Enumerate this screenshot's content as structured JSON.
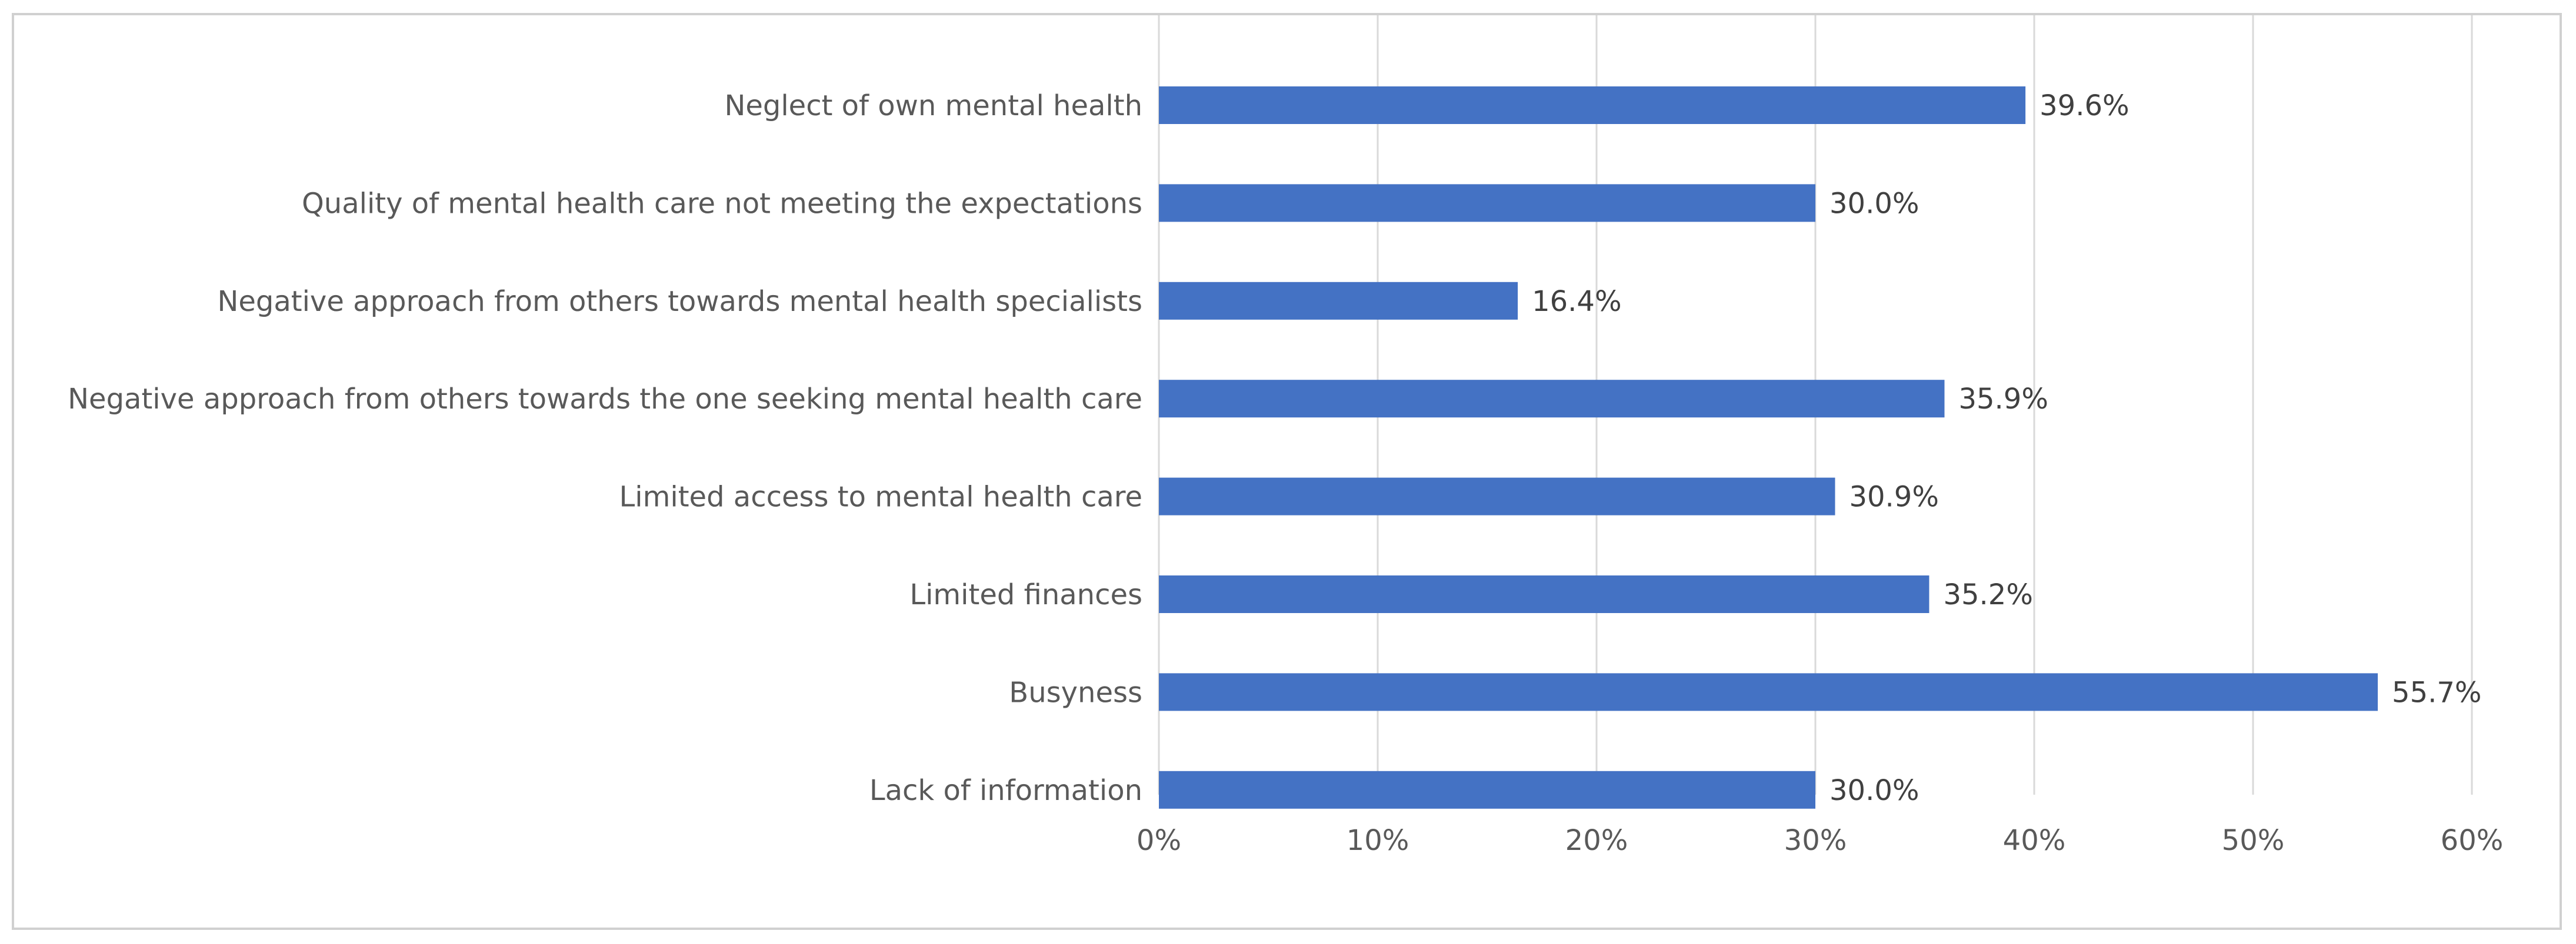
{
  "chart_data": {
    "type": "bar",
    "orientation": "horizontal",
    "title": "",
    "xlabel": "",
    "ylabel": "",
    "categories": [
      "Neglect of own mental health",
      "Quality of mental health care not meeting the expectations",
      "Negative approach from others towards mental health specialists",
      "Negative approach from others towards the one seeking mental health care",
      "Limited access to mental health care",
      "Limited finances",
      "Busyness",
      "Lack of information"
    ],
    "values": [
      39.6,
      30.0,
      16.4,
      35.9,
      30.9,
      35.2,
      55.7,
      30.0
    ],
    "value_labels": [
      "39.6%",
      "30.0%",
      "16.4%",
      "35.9%",
      "30.9%",
      "35.2%",
      "55.7%",
      "30.0%"
    ],
    "xlim": [
      0,
      60
    ],
    "ticks": [
      0,
      10,
      20,
      30,
      40,
      50,
      60
    ],
    "tick_labels": [
      "0%",
      "10%",
      "20%",
      "30%",
      "40%",
      "50%",
      "60%"
    ],
    "grid": true,
    "legend": "none",
    "bar_color": "#4472c4",
    "grid_color": "#d9d9d9"
  }
}
